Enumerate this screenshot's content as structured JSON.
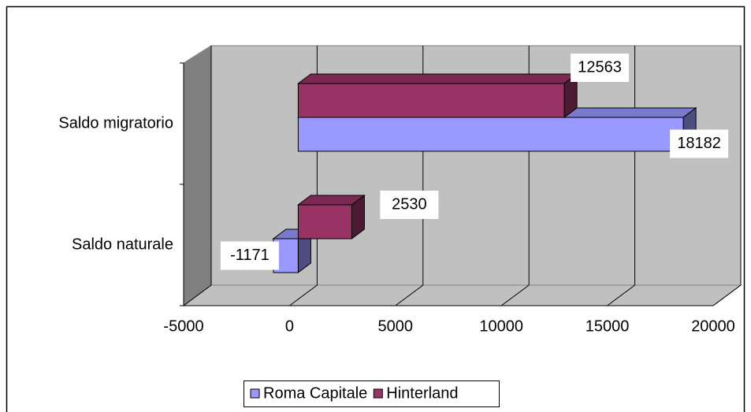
{
  "chart_data": {
    "type": "bar",
    "orientation": "horizontal",
    "categories": [
      "Saldo naturale",
      "Saldo migratorio"
    ],
    "series": [
      {
        "name": "Roma Capitale",
        "color": "#9999ff",
        "values": [
          -1171,
          18182
        ]
      },
      {
        "name": "Hinterland",
        "color": "#993366",
        "values": [
          2530,
          12563
        ]
      }
    ],
    "xlim": [
      -5000,
      20000
    ],
    "xticks": [
      -5000,
      0,
      5000,
      10000,
      15000,
      20000
    ],
    "grid": true,
    "legend": "bottom"
  }
}
